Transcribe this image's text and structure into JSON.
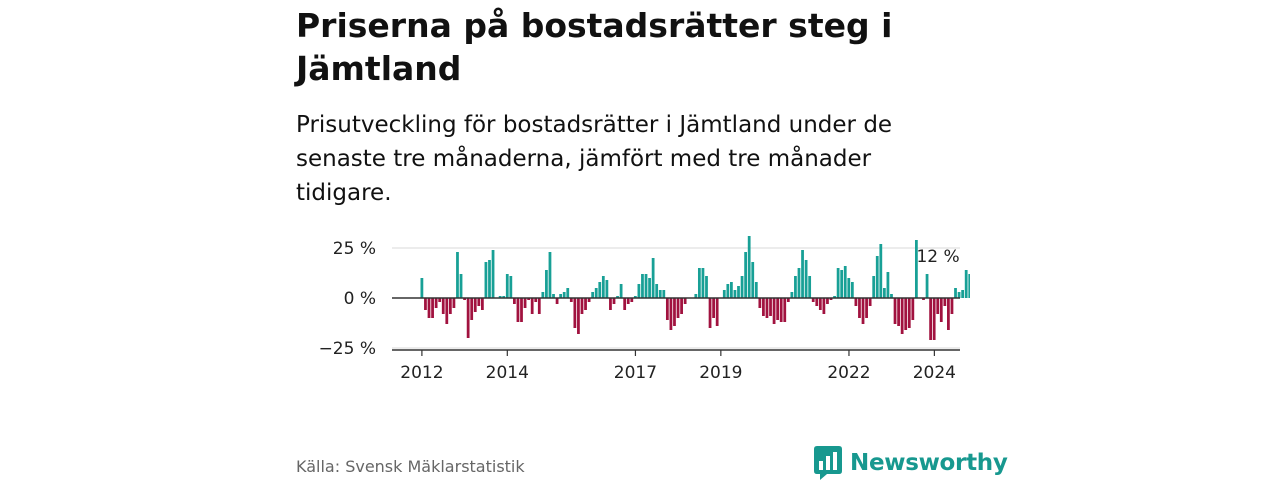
{
  "title": "Priserna på bostadsrätter steg i Jämtland",
  "subtitle": "Prisutveckling för bostadsrätter i Jämtland under de senaste tre månaderna, jämfört med tre månader tidigare.",
  "source": "Källa: Svensk Mäklarstatistik",
  "brand": {
    "name": "Newsworthy",
    "icon": "newsworthy-logo-icon"
  },
  "colors": {
    "positive": "#18a096",
    "negative": "#a1123f",
    "grid": "#d9d9d9",
    "zero": "#333333"
  },
  "chart_data": {
    "type": "bar",
    "title": "Priserna på bostadsrätter steg i Jämtland",
    "xlabel": "",
    "ylabel": "",
    "ylim": [
      -28,
      32
    ],
    "xlim": [
      2011.3,
      2024.6
    ],
    "yticks": [
      25,
      0,
      -25
    ],
    "ytick_labels": [
      "25 %",
      "0 %",
      "−25 %"
    ],
    "xticks": [
      2012,
      2014,
      2017,
      2019,
      2022,
      2024
    ],
    "xtick_labels": [
      "2012",
      "2014",
      "2017",
      "2019",
      "2022",
      "2024"
    ],
    "annotation": {
      "text": "12 %",
      "x": 2024.04,
      "y": 12
    },
    "x_start": 2012.0,
    "x_step": 0.0833,
    "values": [
      10,
      -6,
      -10,
      -10,
      -5,
      -2,
      -8,
      -13,
      -8,
      -5,
      23,
      12,
      -1,
      -20,
      -11,
      -7,
      -4,
      -6,
      18,
      19,
      24,
      0,
      1,
      1,
      12,
      11,
      -3,
      -12,
      -12,
      -5,
      -1,
      -8,
      -2,
      -8,
      3,
      14,
      23,
      2,
      -3,
      2,
      3,
      5,
      -2,
      -15,
      -18,
      -8,
      -6,
      -2,
      3,
      5,
      8,
      11,
      9,
      -6,
      -3,
      1,
      7,
      -6,
      -3,
      -2,
      1,
      7,
      12,
      12,
      10,
      20,
      7,
      4,
      4,
      -11,
      -16,
      -14,
      -10,
      -8,
      -3,
      0,
      0,
      2,
      15,
      15,
      11,
      -15,
      -10,
      -14,
      0,
      4,
      7,
      8,
      4,
      6,
      11,
      23,
      31,
      18,
      8,
      -5,
      -9,
      -10,
      -9,
      -13,
      -11,
      -12,
      -12,
      -2,
      3,
      11,
      15,
      24,
      19,
      11,
      -2,
      -4,
      -6,
      -8,
      -3,
      -1,
      1,
      15,
      14,
      16,
      10,
      8,
      -4,
      -10,
      -13,
      -10,
      -4,
      11,
      21,
      27,
      5,
      13,
      2,
      -13,
      -14,
      -18,
      -16,
      -15,
      -11,
      29,
      0,
      -1,
      12,
      -21,
      -21,
      -8,
      -12,
      -4,
      -16,
      -8,
      5,
      3,
      4,
      14,
      12
    ]
  }
}
